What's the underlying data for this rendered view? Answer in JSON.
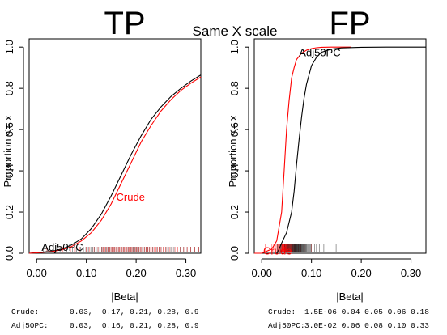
{
  "top_label": "Same X scale",
  "colors": {
    "crude": "#ff0000",
    "adj": "#000000",
    "frame": "#000000"
  },
  "summary": {
    "left": [
      {
        "label": "Crude:",
        "values": "0.03,  0.17, 0.21, 0.28, 0.9"
      },
      {
        "label": "Adj50PC:",
        "values": "0.03,  0.16, 0.21, 0.28, 0.9"
      }
    ],
    "right": [
      {
        "label": "Crude:",
        "values": "1.5E-06 0.04 0.05 0.06 0.18"
      },
      {
        "label": "Adj50PC:",
        "values": "3.0E-02 0.06 0.08 0.10 0.33"
      }
    ]
  },
  "chart_data": [
    {
      "type": "line",
      "title": "TP",
      "xlabel": "|Beta|",
      "ylabel": "Proportion <= x",
      "xlim": [
        -0.015,
        0.33
      ],
      "ylim": [
        0,
        1.04
      ],
      "xticks": [
        "0.00",
        "0.10",
        "0.20",
        "0.30"
      ],
      "yticks": [
        "0.0",
        "0.2",
        "0.4",
        "0.6",
        "0.8",
        "1.0"
      ],
      "series": [
        {
          "name": "Adj50PC",
          "color": "#000000",
          "x": [
            -0.015,
            0.0,
            0.03,
            0.05,
            0.07,
            0.09,
            0.11,
            0.13,
            0.15,
            0.17,
            0.19,
            0.21,
            0.23,
            0.25,
            0.27,
            0.29,
            0.31,
            0.33
          ],
          "y": [
            0.0,
            0.003,
            0.01,
            0.02,
            0.04,
            0.07,
            0.12,
            0.19,
            0.28,
            0.38,
            0.48,
            0.57,
            0.65,
            0.71,
            0.76,
            0.8,
            0.835,
            0.865
          ]
        },
        {
          "name": "Crude",
          "color": "#ff0000",
          "x": [
            -0.015,
            0.0,
            0.03,
            0.05,
            0.07,
            0.09,
            0.11,
            0.13,
            0.15,
            0.17,
            0.19,
            0.21,
            0.23,
            0.25,
            0.27,
            0.29,
            0.31,
            0.33
          ],
          "y": [
            0.0,
            0.002,
            0.008,
            0.016,
            0.032,
            0.06,
            0.1,
            0.16,
            0.24,
            0.34,
            0.44,
            0.54,
            0.62,
            0.69,
            0.745,
            0.79,
            0.825,
            0.855
          ]
        }
      ],
      "labels": [
        {
          "text": "Crude",
          "series": "Crude",
          "x": 0.16,
          "y": 0.255
        },
        {
          "text": "Adj50PC",
          "series": "Adj50PC",
          "x": 0.01,
          "y": 0.012
        }
      ]
    },
    {
      "type": "line",
      "title": "FP",
      "xlabel": "|Beta|",
      "ylabel": "Proportion <= x",
      "xlim": [
        -0.015,
        0.33
      ],
      "ylim": [
        0,
        1.04
      ],
      "xticks": [
        "0.00",
        "0.10",
        "0.20",
        "0.30"
      ],
      "yticks": [
        "0.0",
        "0.2",
        "0.4",
        "0.6",
        "0.8",
        "1.0"
      ],
      "series": [
        {
          "name": "Crude",
          "color": "#ff0000",
          "x": [
            -0.015,
            0.0,
            0.02,
            0.03,
            0.04,
            0.045,
            0.05,
            0.055,
            0.06,
            0.065,
            0.07,
            0.08,
            0.09,
            0.1,
            0.11,
            0.12,
            0.14,
            0.18
          ],
          "y": [
            0.0,
            0.0,
            0.02,
            0.06,
            0.2,
            0.4,
            0.6,
            0.74,
            0.85,
            0.9,
            0.94,
            0.97,
            0.985,
            0.993,
            0.997,
            0.999,
            1.0,
            1.0
          ]
        },
        {
          "name": "Adj50PC",
          "color": "#000000",
          "x": [
            0.03,
            0.035,
            0.04,
            0.05,
            0.06,
            0.065,
            0.07,
            0.075,
            0.08,
            0.085,
            0.09,
            0.1,
            0.11,
            0.12,
            0.14,
            0.16,
            0.2,
            0.25,
            0.33
          ],
          "y": [
            0.0,
            0.02,
            0.05,
            0.1,
            0.2,
            0.3,
            0.43,
            0.55,
            0.66,
            0.75,
            0.82,
            0.91,
            0.95,
            0.975,
            0.99,
            0.996,
            0.999,
            1.0,
            1.0
          ]
        }
      ],
      "labels": [
        {
          "text": "Adj50PC",
          "series": "Adj50PC",
          "x": 0.075,
          "y": 0.955
        },
        {
          "text": "Crude",
          "series": "Crude",
          "x": 0.003,
          "y": -0.005
        }
      ]
    }
  ]
}
